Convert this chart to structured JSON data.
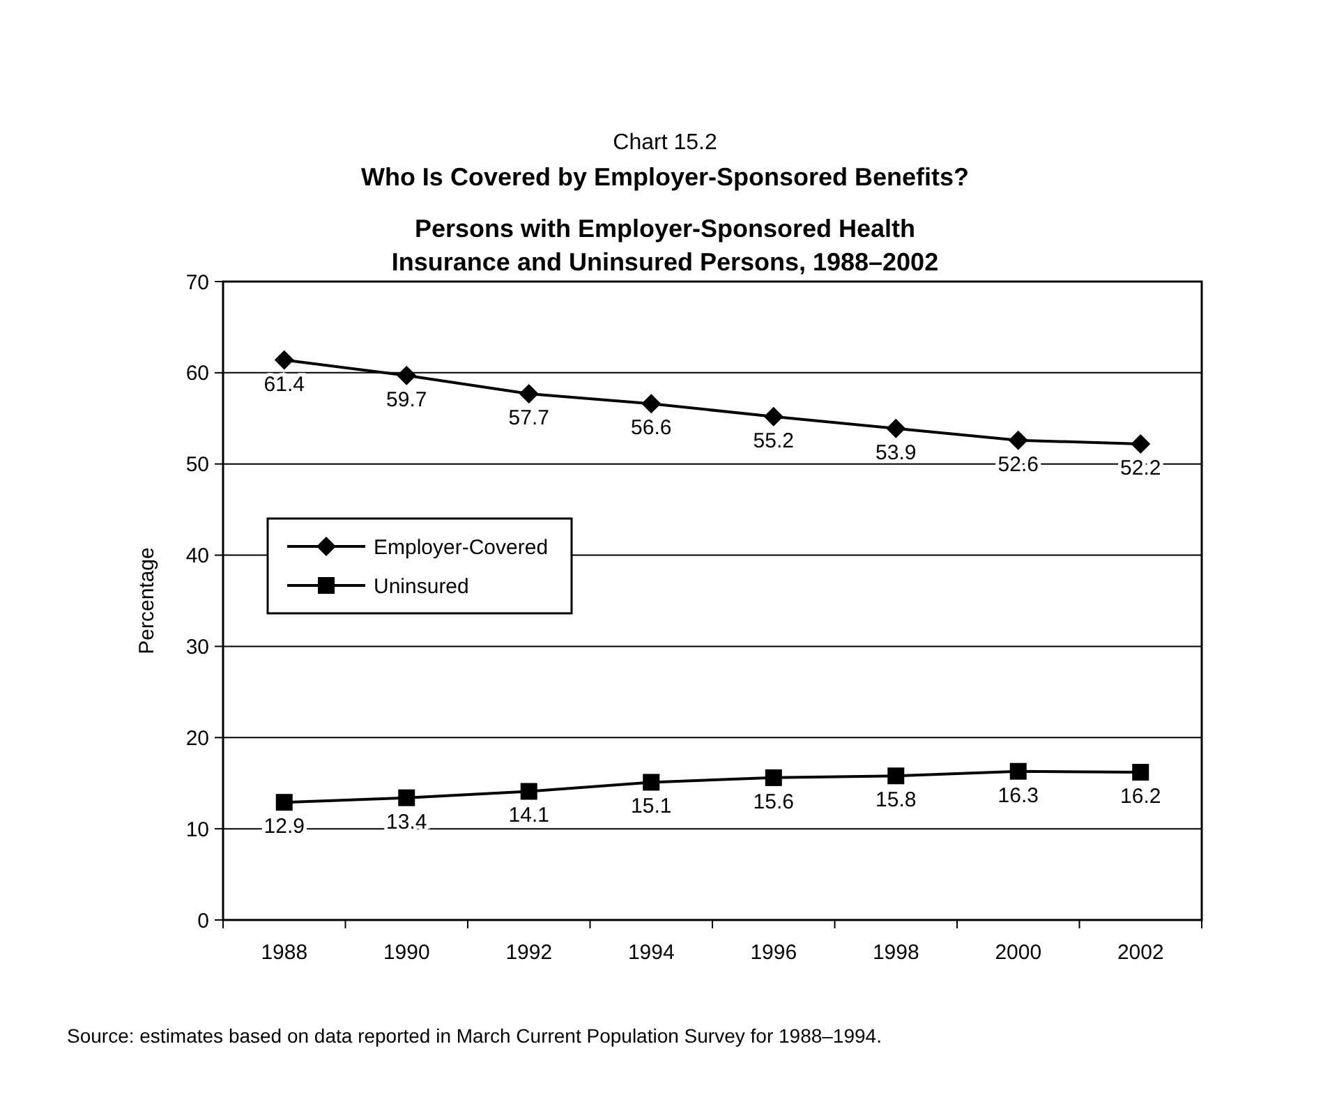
{
  "chart_data": {
    "type": "line",
    "title": "Chart 15.2",
    "subtitle": "Who Is Covered by Employer-Sponsored Benefits?\nPersons with Employer-Sponsored Health\nInsurance and Uninsured Persons, 1988–2002",
    "ylabel": "Percentage",
    "categories": [
      "1988",
      "1990",
      "1992",
      "1994",
      "1996",
      "1998",
      "2000",
      "2002"
    ],
    "series": [
      {
        "name": "Employer-Covered",
        "color": "#000000",
        "marker": "diamond",
        "values": [
          61.4,
          59.7,
          57.7,
          56.6,
          55.2,
          53.9,
          52.6,
          52.2
        ]
      },
      {
        "name": "Uninsured",
        "color": "#000000",
        "marker": "square",
        "values": [
          12.9,
          13.4,
          14.1,
          15.1,
          15.6,
          15.8,
          16.3,
          16.2
        ]
      }
    ],
    "ylim": [
      0,
      70
    ],
    "yticks": [
      0,
      10,
      20,
      30,
      40,
      50,
      60,
      70
    ],
    "grid": "y",
    "legend": "left",
    "data_labels": true,
    "line_style": "solid",
    "annotations": [
      "Source: estimates based on data reported in March Current Population Survey for 1988–1994."
    ]
  }
}
